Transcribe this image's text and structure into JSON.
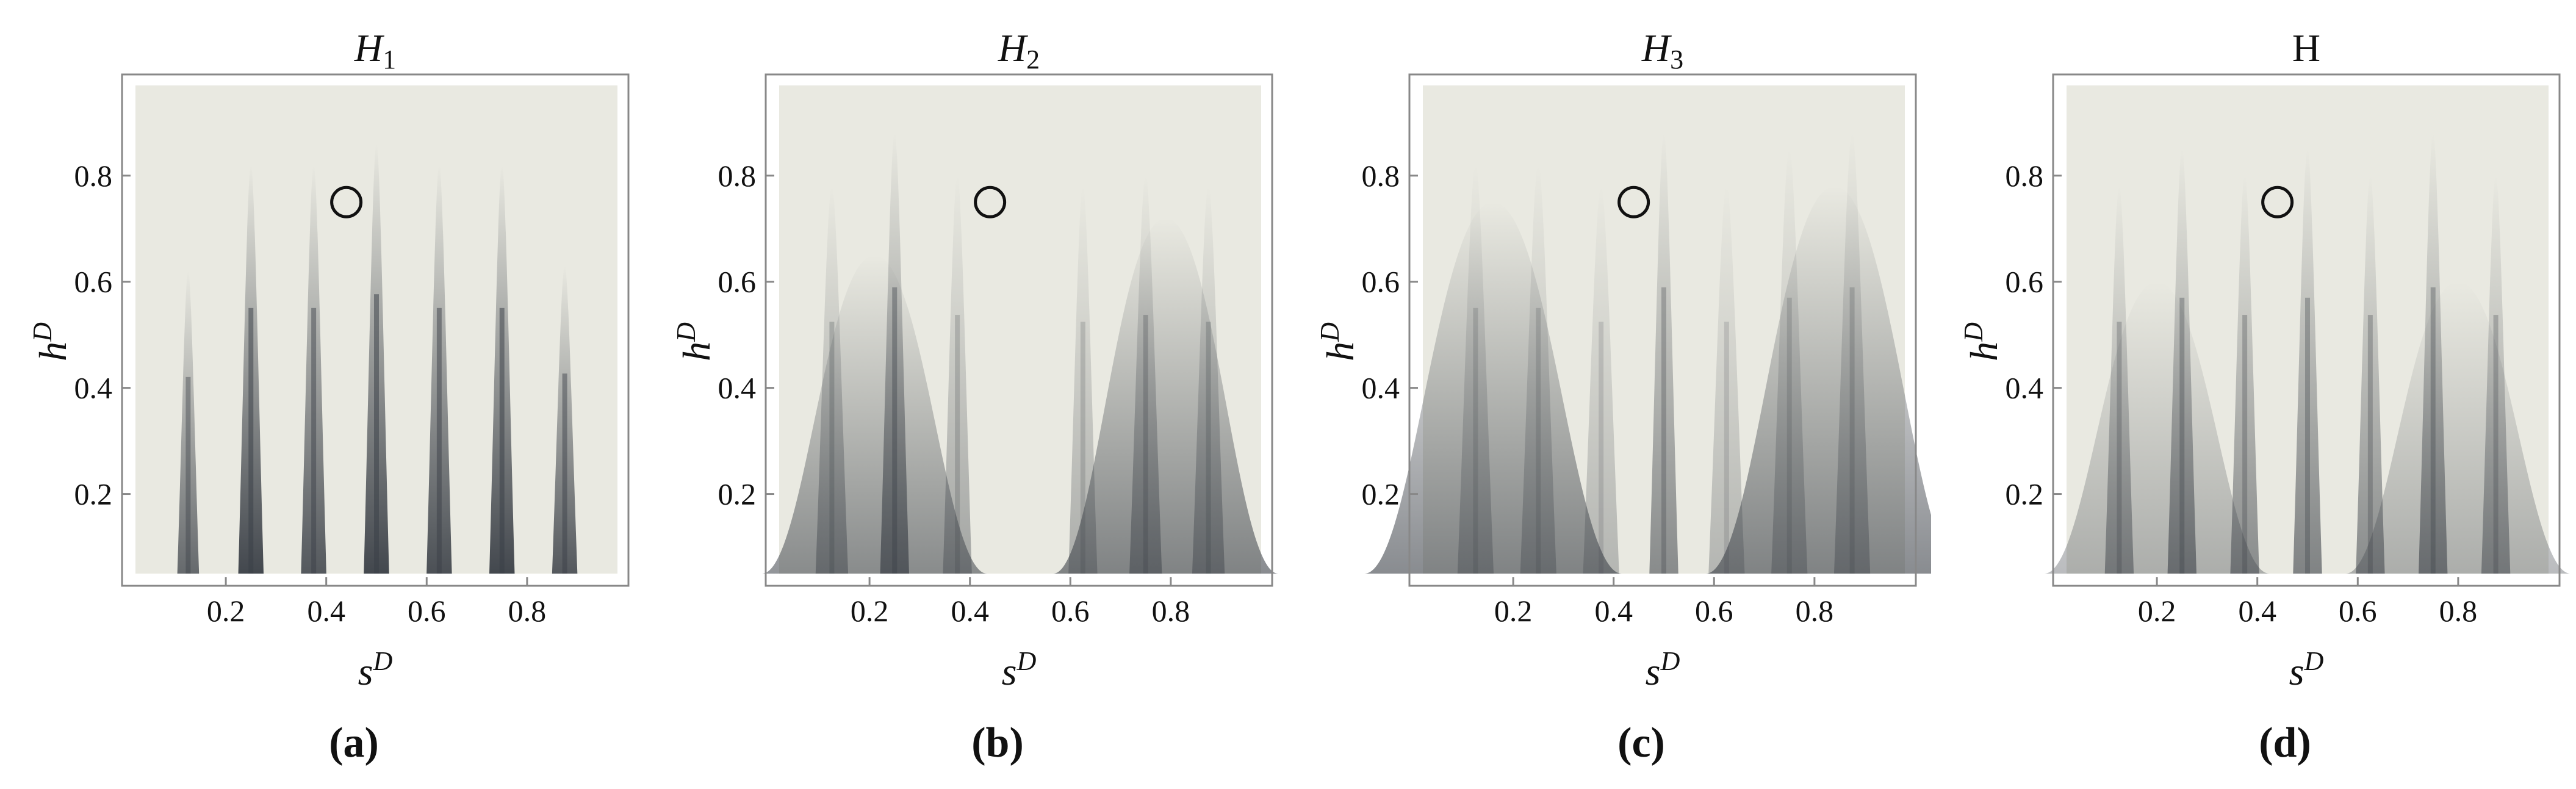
{
  "figure": {
    "panels": [
      {
        "letter": "a",
        "title_main": "H",
        "title_sub": "1"
      },
      {
        "letter": "b",
        "title_main": "H",
        "title_sub": "2"
      },
      {
        "letter": "c",
        "title_main": "H",
        "title_sub": "3"
      },
      {
        "letter": "d",
        "title_main": "H",
        "title_sub": ""
      }
    ],
    "xlabel_main": "s",
    "xlabel_sup": "D",
    "ylabel_main": "h",
    "ylabel_sup": "D",
    "colors": {
      "background": "#e9e9e1",
      "dark": "#3a3f46",
      "frame": "#888888"
    }
  },
  "chart_data": [
    {
      "type": "heatmap",
      "title": "H1",
      "xlabel": "sD",
      "ylabel": "hD",
      "xlim": [
        0.02,
        0.98
      ],
      "ylim": [
        0.05,
        0.97
      ],
      "xticks": [
        0.2,
        0.4,
        0.6,
        0.8
      ],
      "yticks": [
        0.2,
        0.4,
        0.6,
        0.8
      ],
      "marker": {
        "x": 0.44,
        "y": 0.75,
        "shape": "circle"
      },
      "peaks": [
        {
          "x": 0.125,
          "width": 0.012,
          "height": 0.62,
          "depth": 0.75
        },
        {
          "x": 0.25,
          "width": 0.014,
          "height": 0.82,
          "depth": 0.95
        },
        {
          "x": 0.375,
          "width": 0.014,
          "height": 0.82,
          "depth": 0.85
        },
        {
          "x": 0.5,
          "width": 0.014,
          "height": 0.86,
          "depth": 0.95
        },
        {
          "x": 0.625,
          "width": 0.014,
          "height": 0.82,
          "depth": 0.9
        },
        {
          "x": 0.75,
          "width": 0.014,
          "height": 0.82,
          "depth": 0.95
        },
        {
          "x": 0.875,
          "width": 0.014,
          "height": 0.63,
          "depth": 0.85
        }
      ],
      "broad": []
    },
    {
      "type": "heatmap",
      "title": "H2",
      "xlabel": "sD",
      "ylabel": "hD",
      "xlim": [
        0.02,
        0.98
      ],
      "ylim": [
        0.05,
        0.97
      ],
      "xticks": [
        0.2,
        0.4,
        0.6,
        0.8
      ],
      "yticks": [
        0.2,
        0.4,
        0.6,
        0.8
      ],
      "marker": {
        "x": 0.44,
        "y": 0.75,
        "shape": "circle"
      },
      "peaks": [
        {
          "x": 0.125,
          "width": 0.018,
          "height": 0.78,
          "depth": 0.45
        },
        {
          "x": 0.25,
          "width": 0.016,
          "height": 0.88,
          "depth": 0.7
        },
        {
          "x": 0.375,
          "width": 0.016,
          "height": 0.8,
          "depth": 0.4
        },
        {
          "x": 0.625,
          "width": 0.016,
          "height": 0.78,
          "depth": 0.35
        },
        {
          "x": 0.75,
          "width": 0.018,
          "height": 0.8,
          "depth": 0.5
        },
        {
          "x": 0.875,
          "width": 0.018,
          "height": 0.78,
          "depth": 0.45
        }
      ],
      "broad": [
        {
          "x": 0.21,
          "width": 0.14,
          "height": 0.65,
          "depth": 0.55
        },
        {
          "x": 0.79,
          "width": 0.14,
          "height": 0.72,
          "depth": 0.6
        }
      ]
    },
    {
      "type": "heatmap",
      "title": "H3",
      "xlabel": "sD",
      "ylabel": "hD",
      "xlim": [
        0.02,
        0.98
      ],
      "ylim": [
        0.05,
        0.97
      ],
      "xticks": [
        0.2,
        0.4,
        0.6,
        0.8
      ],
      "yticks": [
        0.2,
        0.4,
        0.6,
        0.8
      ],
      "marker": {
        "x": 0.44,
        "y": 0.75,
        "shape": "circle"
      },
      "peaks": [
        {
          "x": 0.125,
          "width": 0.02,
          "height": 0.82,
          "depth": 0.35
        },
        {
          "x": 0.25,
          "width": 0.02,
          "height": 0.82,
          "depth": 0.35
        },
        {
          "x": 0.375,
          "width": 0.02,
          "height": 0.78,
          "depth": 0.3
        },
        {
          "x": 0.5,
          "width": 0.016,
          "height": 0.88,
          "depth": 0.55
        },
        {
          "x": 0.625,
          "width": 0.02,
          "height": 0.78,
          "depth": 0.3
        },
        {
          "x": 0.75,
          "width": 0.02,
          "height": 0.85,
          "depth": 0.35
        },
        {
          "x": 0.875,
          "width": 0.02,
          "height": 0.88,
          "depth": 0.4
        }
      ],
      "broad": [
        {
          "x": 0.16,
          "width": 0.16,
          "height": 0.75,
          "depth": 0.6
        },
        {
          "x": 0.84,
          "width": 0.16,
          "height": 0.78,
          "depth": 0.6
        }
      ]
    },
    {
      "type": "heatmap",
      "title": "H",
      "xlabel": "sD",
      "ylabel": "hD",
      "xlim": [
        0.02,
        0.98
      ],
      "ylim": [
        0.05,
        0.97
      ],
      "xticks": [
        0.2,
        0.4,
        0.6,
        0.8
      ],
      "yticks": [
        0.2,
        0.4,
        0.6,
        0.8
      ],
      "marker": {
        "x": 0.44,
        "y": 0.75,
        "shape": "circle"
      },
      "peaks": [
        {
          "x": 0.125,
          "width": 0.016,
          "height": 0.78,
          "depth": 0.5
        },
        {
          "x": 0.25,
          "width": 0.016,
          "height": 0.85,
          "depth": 0.6
        },
        {
          "x": 0.375,
          "width": 0.016,
          "height": 0.8,
          "depth": 0.55
        },
        {
          "x": 0.5,
          "width": 0.016,
          "height": 0.85,
          "depth": 0.6
        },
        {
          "x": 0.625,
          "width": 0.016,
          "height": 0.8,
          "depth": 0.55
        },
        {
          "x": 0.75,
          "width": 0.016,
          "height": 0.88,
          "depth": 0.6
        },
        {
          "x": 0.875,
          "width": 0.016,
          "height": 0.8,
          "depth": 0.5
        }
      ],
      "broad": [
        {
          "x": 0.2,
          "width": 0.14,
          "height": 0.6,
          "depth": 0.35
        },
        {
          "x": 0.8,
          "width": 0.14,
          "height": 0.6,
          "depth": 0.35
        }
      ]
    }
  ]
}
